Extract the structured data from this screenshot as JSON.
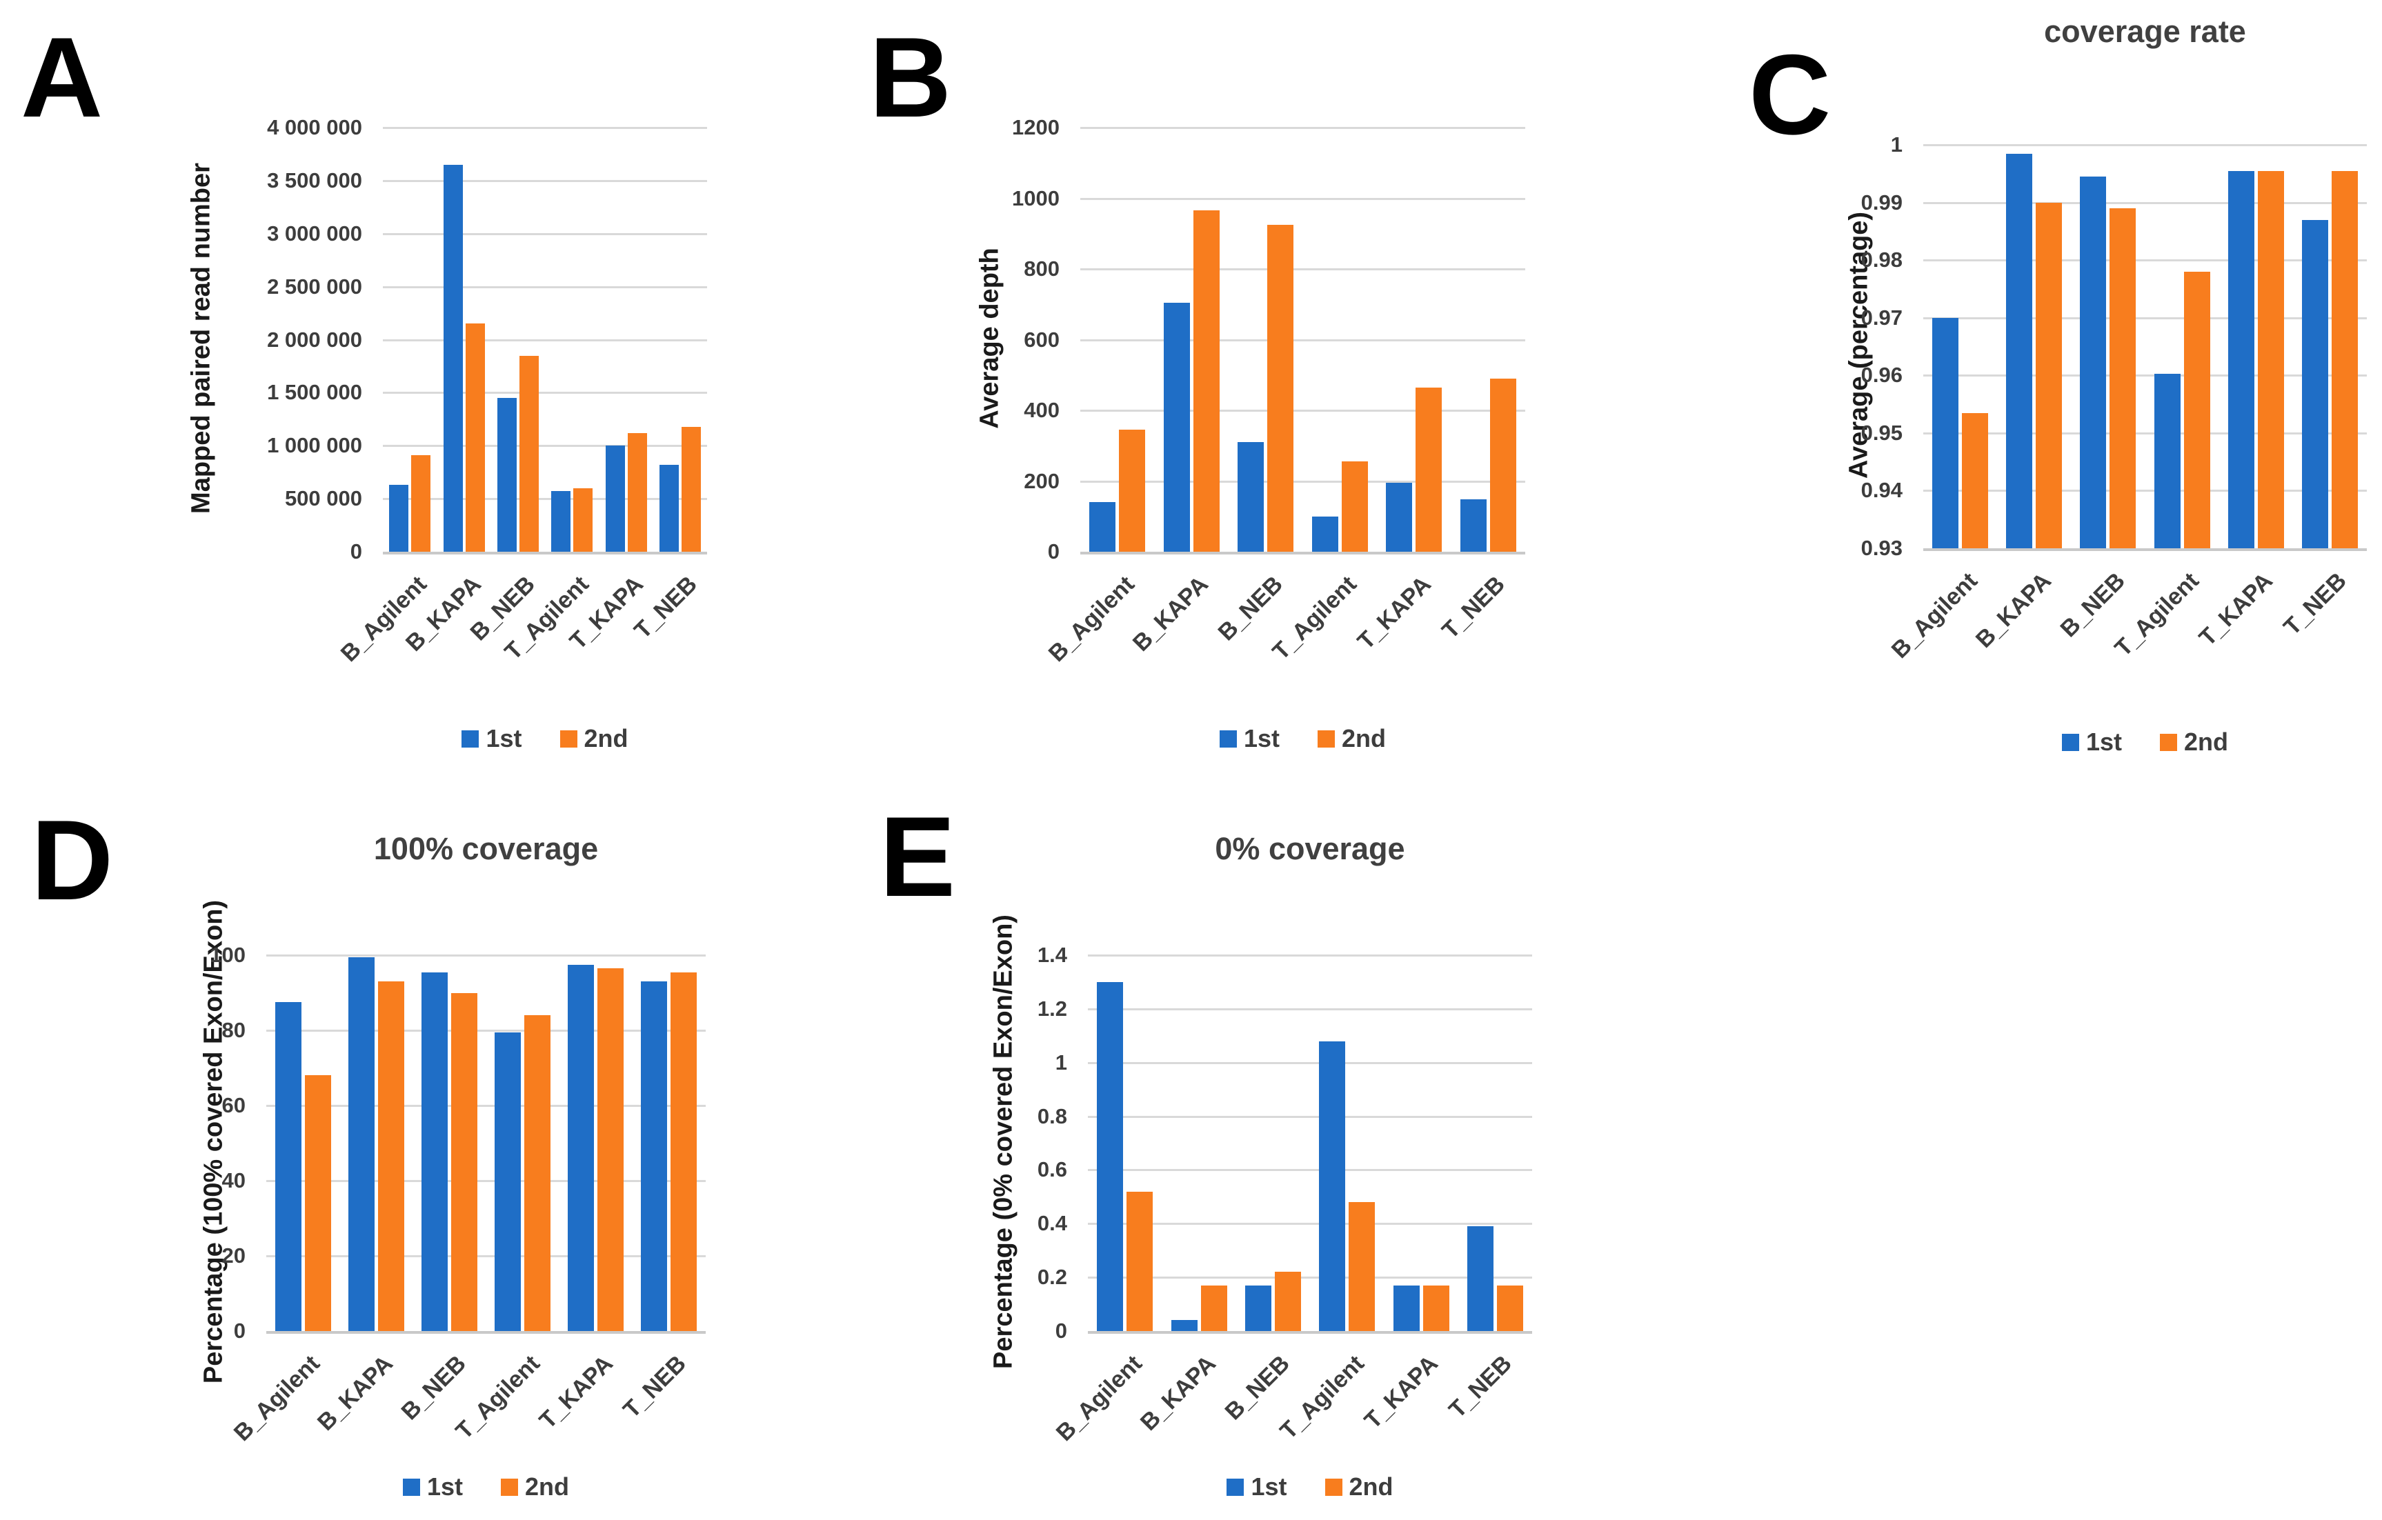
{
  "colors": {
    "series_1st": "#1f6ec6",
    "series_2nd": "#f87d1e",
    "gridline": "#d9d9d9",
    "axis_line": "#c9c9c9",
    "tick_text": "#3d3d3d",
    "title_text": "#404040",
    "y_title_text": "#1a1a1a",
    "panel_letter": "#000000"
  },
  "legend": {
    "items": [
      {
        "label": "1st",
        "color_key": "series_1st"
      },
      {
        "label": "2nd",
        "color_key": "series_2nd"
      }
    ]
  },
  "chart_data": [
    {
      "panel_label": "A",
      "type": "bar",
      "title": "",
      "ylabel": "Mapped paired read number",
      "categories": [
        "B_Agilent",
        "B_KAPA",
        "B_NEB",
        "T_Agilent",
        "T_KAPA",
        "T_NEB"
      ],
      "series": [
        {
          "name": "1st",
          "values": [
            630000,
            3650000,
            1450000,
            570000,
            1000000,
            820000
          ]
        },
        {
          "name": "2nd",
          "values": [
            910000,
            2150000,
            1850000,
            600000,
            1120000,
            1180000
          ]
        }
      ],
      "ylim": [
        0,
        4000000
      ],
      "grid": true,
      "legend_position": "bottom",
      "yticks": [
        {
          "v": 0,
          "label": "0"
        },
        {
          "v": 500000,
          "label": "500 000"
        },
        {
          "v": 1000000,
          "label": "1 000 000"
        },
        {
          "v": 1500000,
          "label": "1 500 000"
        },
        {
          "v": 2000000,
          "label": "2 000 000"
        },
        {
          "v": 2500000,
          "label": "2 500 000"
        },
        {
          "v": 3000000,
          "label": "3 000 000"
        },
        {
          "v": 3500000,
          "label": "3 500 000"
        },
        {
          "v": 4000000,
          "label": "4 000 000"
        }
      ]
    },
    {
      "panel_label": "B",
      "type": "bar",
      "title": "",
      "ylabel": "Average depth",
      "categories": [
        "B_Agilent",
        "B_KAPA",
        "B_NEB",
        "T_Agilent",
        "T_KAPA",
        "T_NEB"
      ],
      "series": [
        {
          "name": "1st",
          "values": [
            140,
            705,
            310,
            100,
            195,
            148
          ]
        },
        {
          "name": "2nd",
          "values": [
            345,
            965,
            925,
            255,
            465,
            490
          ]
        }
      ],
      "ylim": [
        0,
        1200
      ],
      "grid": true,
      "legend_position": "bottom",
      "yticks": [
        {
          "v": 0,
          "label": "0"
        },
        {
          "v": 200,
          "label": "200"
        },
        {
          "v": 400,
          "label": "400"
        },
        {
          "v": 600,
          "label": "600"
        },
        {
          "v": 800,
          "label": "800"
        },
        {
          "v": 1000,
          "label": "1000"
        },
        {
          "v": 1200,
          "label": "1200"
        }
      ]
    },
    {
      "panel_label": "C",
      "type": "bar",
      "title": "coverage rate",
      "ylabel": "Average (percentage)",
      "categories": [
        "B_Agilent",
        "B_KAPA",
        "B_NEB",
        "T_Agilent",
        "T_KAPA",
        "T_NEB"
      ],
      "series": [
        {
          "name": "1st",
          "values": [
            0.97,
            0.9985,
            0.9945,
            0.9603,
            0.9955,
            0.987
          ]
        },
        {
          "name": "2nd",
          "values": [
            0.9535,
            0.99,
            0.989,
            0.978,
            0.9955,
            0.9955
          ]
        }
      ],
      "ylim": [
        0.93,
        1.0
      ],
      "grid": true,
      "legend_position": "bottom",
      "yticks": [
        {
          "v": 0.93,
          "label": "0.93"
        },
        {
          "v": 0.94,
          "label": "0.94"
        },
        {
          "v": 0.95,
          "label": "0.95"
        },
        {
          "v": 0.96,
          "label": "0.96"
        },
        {
          "v": 0.97,
          "label": "0.97"
        },
        {
          "v": 0.98,
          "label": "0.98"
        },
        {
          "v": 0.99,
          "label": "0.99"
        },
        {
          "v": 1.0,
          "label": "1"
        }
      ]
    },
    {
      "panel_label": "D",
      "type": "bar",
      "title": "100% coverage",
      "ylabel": "Percentage (100% covered Exon/Exon)",
      "categories": [
        "B_Agilent",
        "B_KAPA",
        "B_NEB",
        "T_Agilent",
        "T_KAPA",
        "T_NEB"
      ],
      "series": [
        {
          "name": "1st",
          "values": [
            87.5,
            99.5,
            95.5,
            79.5,
            97.5,
            93
          ]
        },
        {
          "name": "2nd",
          "values": [
            68,
            93,
            90,
            84,
            96.5,
            95.5
          ]
        }
      ],
      "ylim": [
        0,
        100
      ],
      "grid": true,
      "legend_position": "bottom",
      "yticks": [
        {
          "v": 0,
          "label": "0"
        },
        {
          "v": 20,
          "label": "20"
        },
        {
          "v": 40,
          "label": "40"
        },
        {
          "v": 60,
          "label": "60"
        },
        {
          "v": 80,
          "label": "80"
        },
        {
          "v": 100,
          "label": "100"
        }
      ]
    },
    {
      "panel_label": "E",
      "type": "bar",
      "title": "0% coverage",
      "ylabel": "Percentage (0% covered Exon/Exon)",
      "categories": [
        "B_Agilent",
        "B_KAPA",
        "B_NEB",
        "T_Agilent",
        "T_KAPA",
        "T_NEB"
      ],
      "series": [
        {
          "name": "1st",
          "values": [
            1.3,
            0.04,
            0.17,
            1.08,
            0.17,
            0.39
          ]
        },
        {
          "name": "2nd",
          "values": [
            0.52,
            0.17,
            0.22,
            0.48,
            0.17,
            0.17
          ]
        }
      ],
      "ylim": [
        0,
        1.4
      ],
      "grid": true,
      "legend_position": "bottom",
      "yticks": [
        {
          "v": 0,
          "label": "0"
        },
        {
          "v": 0.2,
          "label": "0.2"
        },
        {
          "v": 0.4,
          "label": "0.4"
        },
        {
          "v": 0.6,
          "label": "0.6"
        },
        {
          "v": 0.8,
          "label": "0.8"
        },
        {
          "v": 1.0,
          "label": "1"
        },
        {
          "v": 1.2,
          "label": "1.2"
        },
        {
          "v": 1.4,
          "label": "1.4"
        }
      ]
    }
  ]
}
